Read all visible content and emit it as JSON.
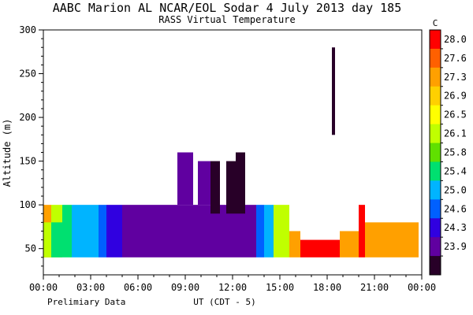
{
  "header": {
    "title": "AABC Marion AL  NCAR/EOL Sodar   4 July 2013  day 185",
    "subtitle": "RASS Virtual Temperature"
  },
  "footer": {
    "note": "Prelimiary Data",
    "xlabel": "UT  (CDT - 5)"
  },
  "chart_data": {
    "type": "heatmap",
    "title": "AABC Marion AL  NCAR/EOL Sodar   4 July 2013  day 185",
    "subtitle": "RASS Virtual Temperature",
    "xlabel": "UT  (CDT - 5)",
    "ylabel": "Altitude (m)",
    "xlim": [
      0,
      24
    ],
    "ylim": [
      20,
      300
    ],
    "x_ticks": [
      "00:00",
      "03:00",
      "06:00",
      "09:00",
      "12:00",
      "15:00",
      "18:00",
      "21:00",
      "00:00"
    ],
    "y_ticks": [
      50,
      100,
      150,
      200,
      250,
      300
    ],
    "colorbar": {
      "unit": "C",
      "labels": [
        "28.0",
        "27.6",
        "27.3",
        "26.9",
        "26.5",
        "26.1",
        "25.8",
        "25.4",
        "25.0",
        "24.6",
        "24.3",
        "23.9"
      ],
      "colors": [
        "#ff0000",
        "#ff6000",
        "#ffa000",
        "#ffd000",
        "#ffff00",
        "#c0ff00",
        "#60e000",
        "#00e070",
        "#00b4ff",
        "#0060ff",
        "#3000e0",
        "#6000a0",
        "#280028"
      ]
    },
    "field": [
      {
        "t_start": 0.0,
        "t_end": 0.5,
        "color": "#ffa000",
        "top": 100
      },
      {
        "t_start": 0.0,
        "t_end": 0.5,
        "color": "#c0ff00",
        "top": 80
      },
      {
        "t_start": 0.5,
        "t_end": 1.2,
        "color": "#c0ff00",
        "top": 100
      },
      {
        "t_start": 0.5,
        "t_end": 1.2,
        "color": "#00e070",
        "top": 80
      },
      {
        "t_start": 1.2,
        "t_end": 1.8,
        "color": "#00e070",
        "top": 100
      },
      {
        "t_start": 1.8,
        "t_end": 3.5,
        "color": "#00b4ff",
        "top": 100
      },
      {
        "t_start": 3.5,
        "t_end": 4.0,
        "color": "#0060ff",
        "top": 100
      },
      {
        "t_start": 4.0,
        "t_end": 5.0,
        "color": "#3000e0",
        "top": 100
      },
      {
        "t_start": 5.0,
        "t_end": 13.5,
        "color": "#6000a0",
        "top": 100
      },
      {
        "t_start": 13.5,
        "t_end": 14.0,
        "color": "#0060ff",
        "top": 100
      },
      {
        "t_start": 14.0,
        "t_end": 14.6,
        "color": "#00b4ff",
        "top": 100
      },
      {
        "t_start": 14.6,
        "t_end": 15.6,
        "color": "#c0ff00",
        "top": 100
      },
      {
        "t_start": 15.6,
        "t_end": 16.3,
        "color": "#ffa000",
        "top": 70
      },
      {
        "t_start": 16.3,
        "t_end": 18.8,
        "color": "#ff0000",
        "top": 60
      },
      {
        "t_start": 18.8,
        "t_end": 20.0,
        "color": "#ffa000",
        "top": 70
      },
      {
        "t_start": 20.0,
        "t_end": 20.4,
        "color": "#ff0000",
        "top": 100
      },
      {
        "t_start": 20.4,
        "t_end": 23.8,
        "color": "#ffa000",
        "top": 80
      }
    ],
    "cells": [
      {
        "t_start": 8.5,
        "t_end": 9.5,
        "color": "#6000a0",
        "bottom": 100,
        "top": 160
      },
      {
        "t_start": 9.8,
        "t_end": 10.6,
        "color": "#6000a0",
        "bottom": 100,
        "top": 150
      },
      {
        "t_start": 10.6,
        "t_end": 11.2,
        "color": "#280028",
        "bottom": 90,
        "top": 150
      },
      {
        "t_start": 11.6,
        "t_end": 12.2,
        "color": "#280028",
        "bottom": 90,
        "top": 150
      },
      {
        "t_start": 12.2,
        "t_end": 12.8,
        "color": "#280028",
        "bottom": 90,
        "top": 160
      },
      {
        "t_start": 18.3,
        "t_end": 18.5,
        "color": "#280028",
        "bottom": 180,
        "top": 280
      }
    ]
  }
}
